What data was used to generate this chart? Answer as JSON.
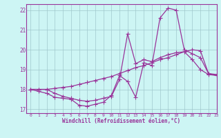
{
  "xlabel": "Windchill (Refroidissement éolien,°C)",
  "xlim": [
    -0.5,
    23
  ],
  "ylim": [
    16.8,
    22.3
  ],
  "yticks": [
    17,
    18,
    19,
    20,
    21,
    22
  ],
  "xticks": [
    0,
    1,
    2,
    3,
    4,
    5,
    6,
    7,
    8,
    9,
    10,
    11,
    12,
    13,
    14,
    15,
    16,
    17,
    18,
    19,
    20,
    21,
    22,
    23
  ],
  "background_color": "#cdf5f4",
  "line_color": "#993399",
  "grid_color": "#a0c8cc",
  "line1_x": [
    0,
    1,
    2,
    3,
    4,
    5,
    6,
    7,
    8,
    9,
    10,
    11,
    12,
    13,
    14,
    15,
    16,
    17,
    18,
    19,
    20,
    21,
    22,
    23
  ],
  "line1_y": [
    18.0,
    17.9,
    17.8,
    17.6,
    17.55,
    17.5,
    17.2,
    17.15,
    17.25,
    17.35,
    17.7,
    18.7,
    18.4,
    17.6,
    19.35,
    19.2,
    21.6,
    22.1,
    22.0,
    20.0,
    19.8,
    19.6,
    18.8,
    18.7
  ],
  "line2_x": [
    0,
    1,
    2,
    3,
    4,
    5,
    6,
    7,
    8,
    9,
    10,
    11,
    12,
    13,
    14,
    15,
    16,
    17,
    18,
    19,
    20,
    21,
    22,
    23
  ],
  "line2_y": [
    18.0,
    18.0,
    18.0,
    18.05,
    18.1,
    18.15,
    18.25,
    18.35,
    18.45,
    18.55,
    18.65,
    18.8,
    18.95,
    19.1,
    19.2,
    19.35,
    19.5,
    19.6,
    19.75,
    19.9,
    20.0,
    19.95,
    18.8,
    18.75
  ],
  "line3_x": [
    0,
    1,
    2,
    3,
    4,
    5,
    6,
    7,
    8,
    9,
    10,
    11,
    12,
    13,
    14,
    15,
    16,
    17,
    18,
    19,
    20,
    21,
    22,
    23
  ],
  "line3_y": [
    18.0,
    18.0,
    18.0,
    17.8,
    17.65,
    17.55,
    17.45,
    17.4,
    17.45,
    17.55,
    17.65,
    18.5,
    20.8,
    19.3,
    19.5,
    19.4,
    19.6,
    19.75,
    19.85,
    19.9,
    19.5,
    19.0,
    18.75,
    18.7
  ]
}
